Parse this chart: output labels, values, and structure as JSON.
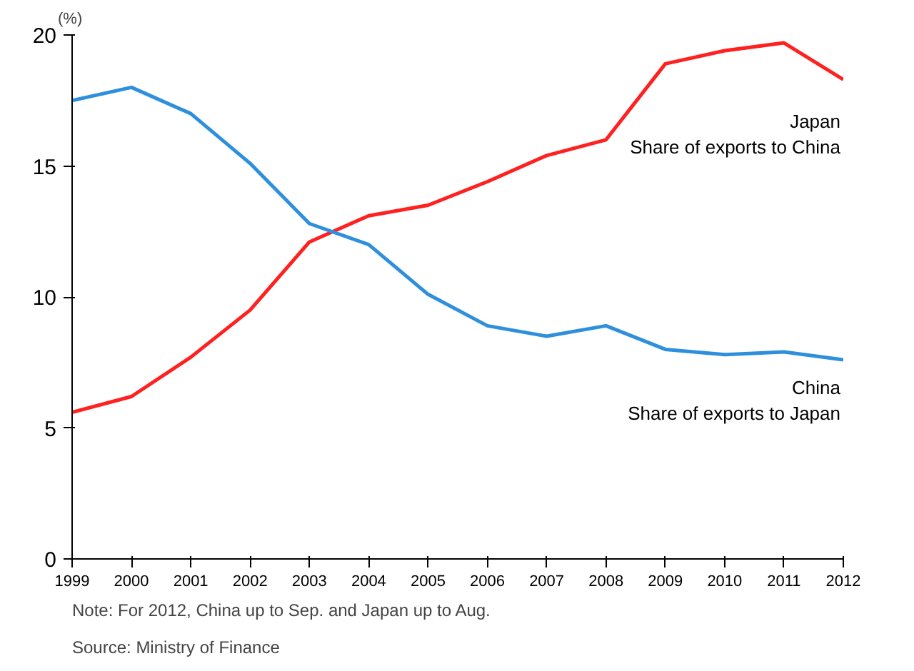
{
  "chart_data": {
    "type": "line",
    "ylabel": "(%)",
    "x": [
      1999,
      2000,
      2001,
      2002,
      2003,
      2004,
      2005,
      2006,
      2007,
      2008,
      2009,
      2010,
      2011,
      2012
    ],
    "xlim": [
      1999,
      2012
    ],
    "xticks": [
      1999,
      2000,
      2001,
      2002,
      2003,
      2004,
      2005,
      2006,
      2007,
      2008,
      2009,
      2010,
      2011,
      2012
    ],
    "ylim": [
      0,
      20
    ],
    "yticks": [
      0,
      5,
      10,
      15,
      20
    ],
    "grid": false,
    "series": [
      {
        "name": "Japan\nShare of exports to China",
        "color": "#ff2020",
        "values": [
          5.6,
          6.2,
          7.7,
          9.5,
          12.1,
          13.1,
          13.5,
          14.4,
          15.4,
          16.0,
          18.9,
          19.4,
          19.7,
          18.3
        ]
      },
      {
        "name": "China\nShare of exports to Japan",
        "color": "#2e8fdd",
        "values": [
          17.5,
          18.0,
          17.0,
          15.1,
          12.8,
          12.0,
          10.1,
          8.9,
          8.5,
          8.9,
          8.0,
          7.8,
          7.9,
          7.6
        ]
      }
    ],
    "annotations": [
      "Note: For 2012, China up to Sep. and Japan up to Aug.",
      "Source: Ministry of Finance"
    ]
  }
}
